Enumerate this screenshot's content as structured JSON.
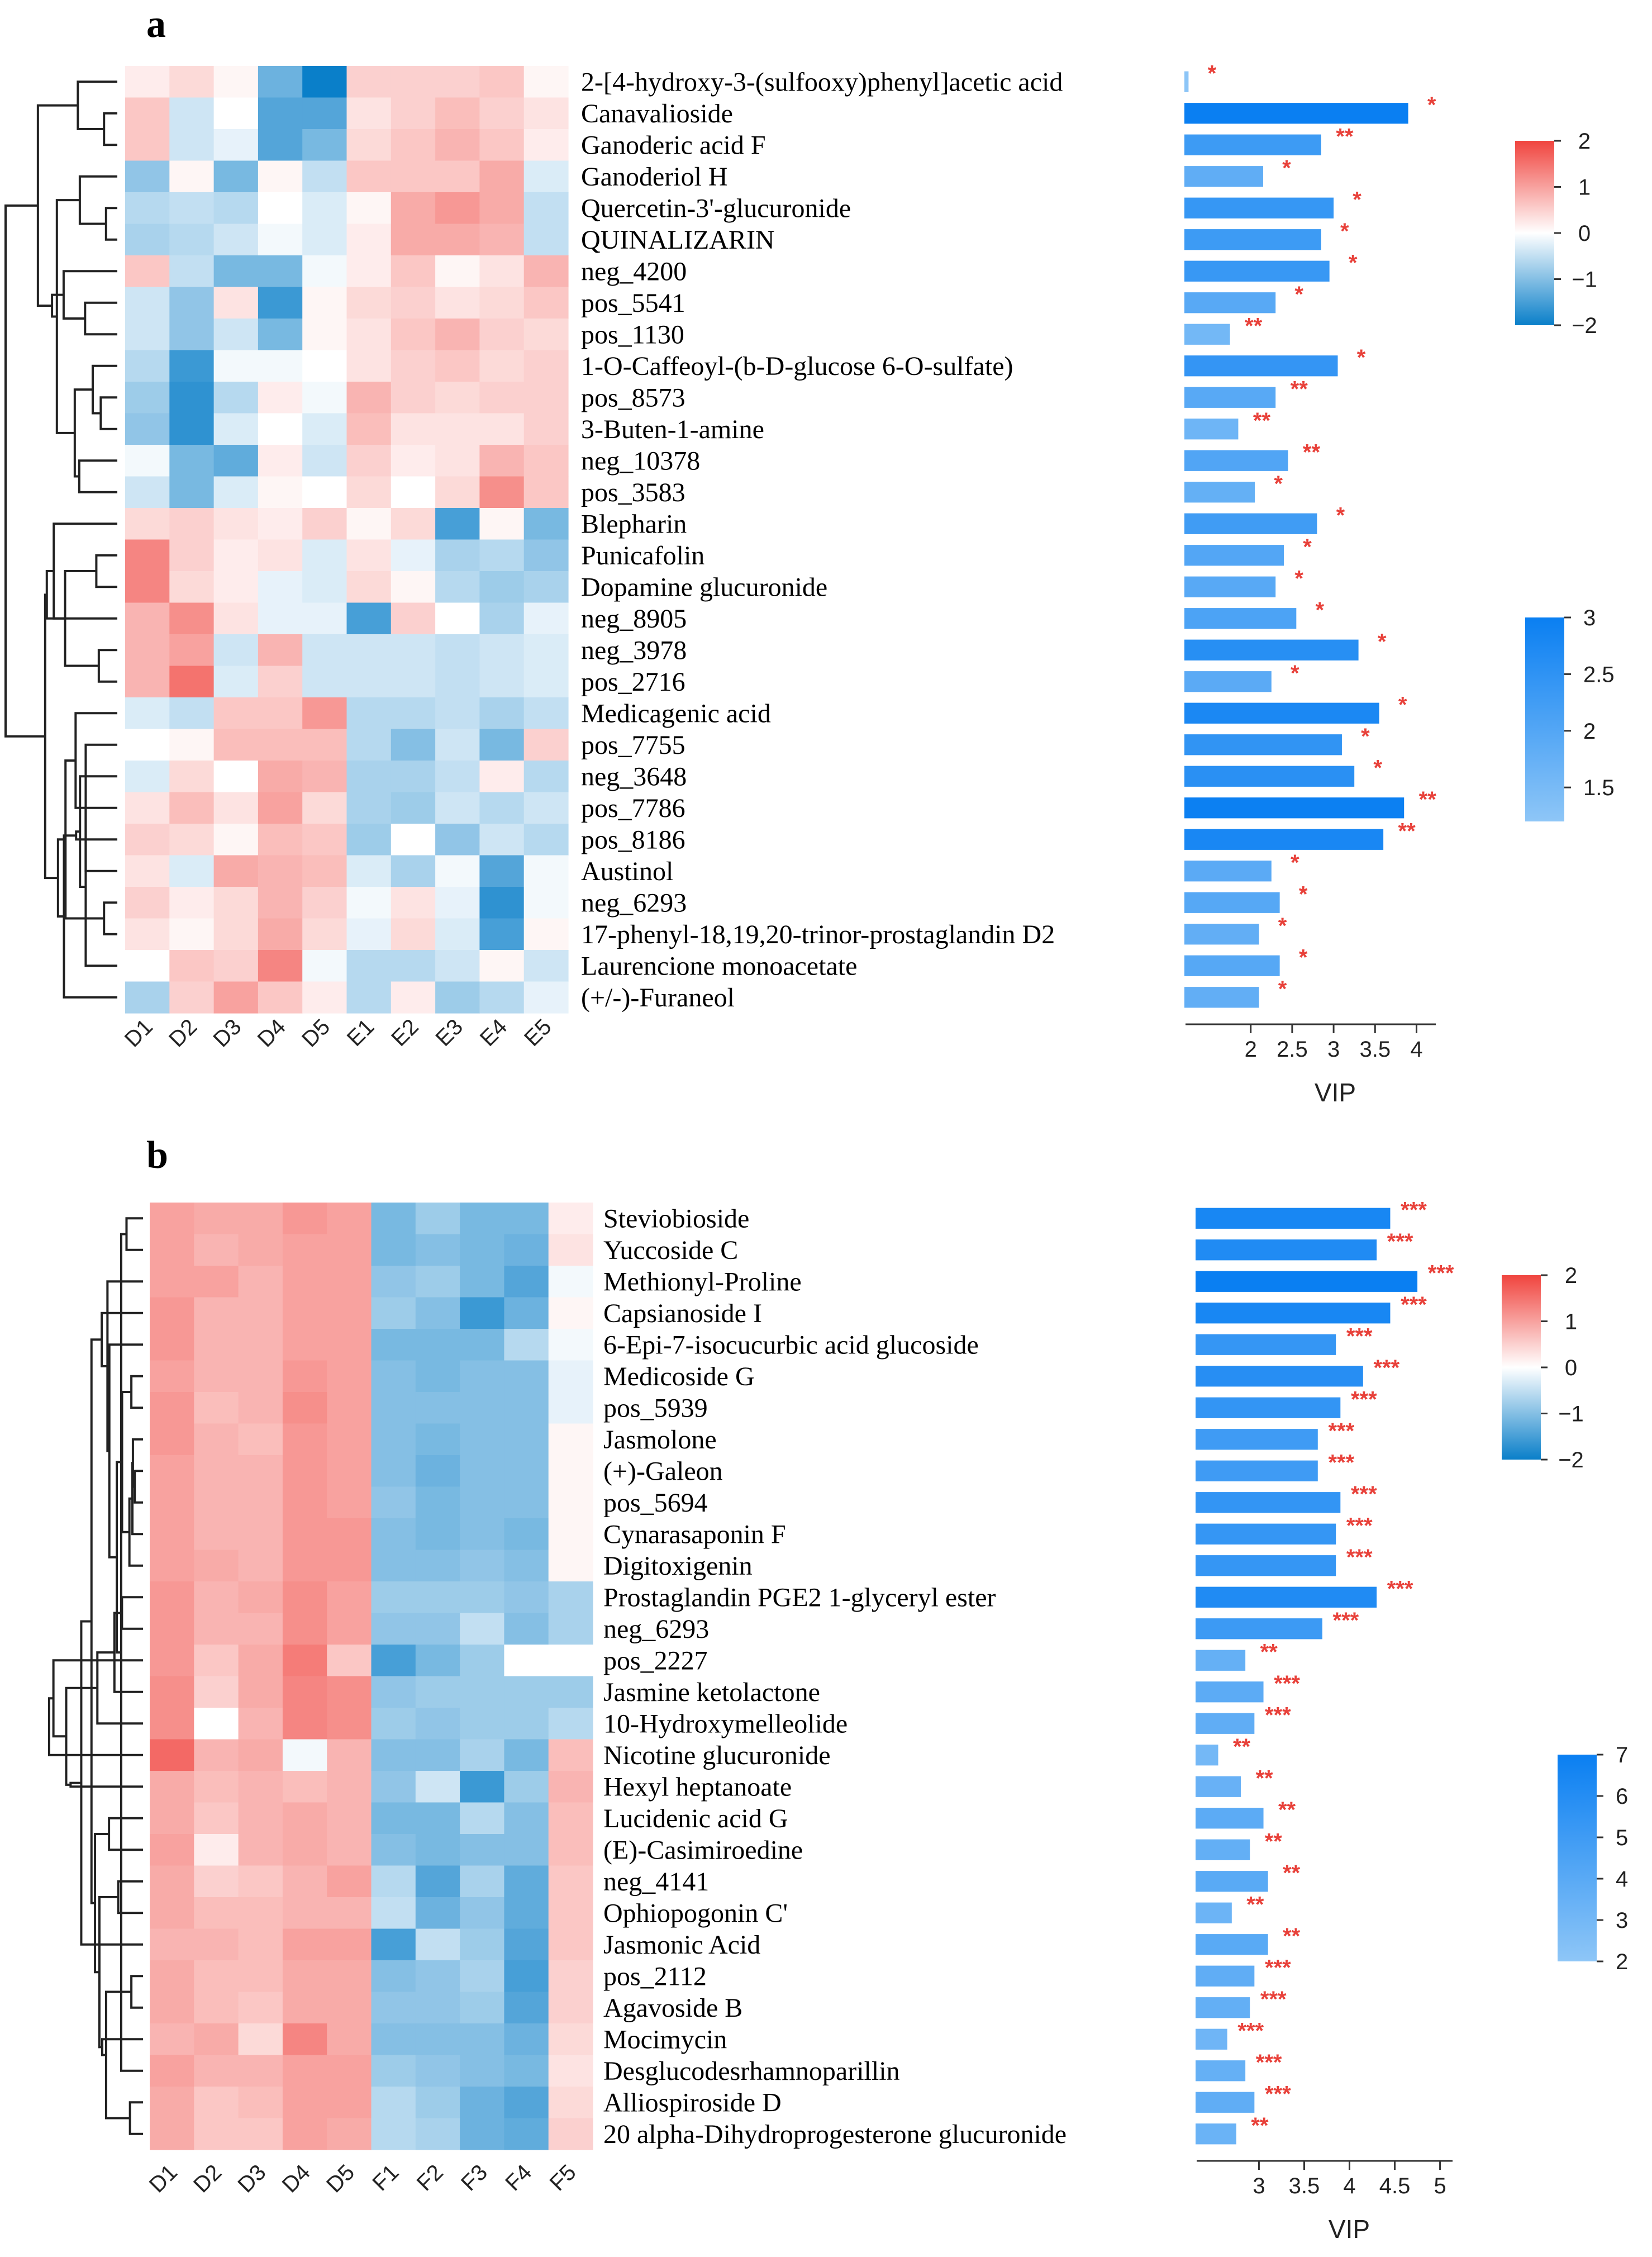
{
  "colors": {
    "heat_low": "#0a7fc9",
    "heat_mid": "#ffffff",
    "heat_high": "#f0443e",
    "vip_low": "#8ec6f7",
    "vip_high": "#0a7ff2",
    "sig": "#e8413a",
    "dendro": "#222222"
  },
  "chart_data": [
    {
      "type": "heatmap",
      "panel_label": "a",
      "columns": [
        "D1",
        "D2",
        "D3",
        "D4",
        "D5",
        "E1",
        "E2",
        "E3",
        "E4",
        "E5"
      ],
      "rows": [
        "2-[4-hydroxy-3-(sulfooxy)phenyl]acetic acid",
        "Canavalioside",
        "Ganoderic acid F",
        "Ganoderiol H",
        "Quercetin-3'-glucuronide",
        "QUINALIZARIN",
        "neg_4200",
        "pos_5541",
        "pos_1130",
        "1-O-Caffeoyl-(b-D-glucose 6-O-sulfate)",
        "pos_8573",
        "3-Buten-1-amine",
        "neg_10378",
        "pos_3583",
        "Blepharin",
        "Punicafolin",
        "Dopamine glucuronide",
        "neg_8905",
        "neg_3978",
        "pos_2716",
        "Medicagenic acid",
        "pos_7755",
        "neg_3648",
        "pos_7786",
        "pos_8186",
        "Austinol",
        "neg_6293",
        "17-phenyl-18,19,20-trinor-prostaglandin D2",
        "Laurencione monoacetate",
        "(+/-)-Furaneol"
      ],
      "values": [
        [
          0.2,
          0.4,
          0.1,
          -1.2,
          -2.0,
          0.5,
          0.5,
          0.5,
          0.6,
          0.1
        ],
        [
          0.6,
          -0.4,
          0.0,
          -1.4,
          -1.4,
          0.3,
          0.5,
          0.7,
          0.5,
          0.3
        ],
        [
          0.6,
          -0.4,
          -0.2,
          -1.4,
          -1.1,
          0.4,
          0.6,
          0.8,
          0.6,
          0.2
        ],
        [
          -0.9,
          0.1,
          -1.1,
          0.1,
          -0.5,
          0.6,
          0.6,
          0.6,
          0.9,
          -0.3
        ],
        [
          -0.6,
          -0.5,
          -0.6,
          0.0,
          -0.3,
          0.1,
          0.9,
          1.1,
          0.9,
          -0.5
        ],
        [
          -0.7,
          -0.6,
          -0.4,
          -0.1,
          -0.3,
          0.2,
          0.9,
          0.9,
          0.8,
          -0.5
        ],
        [
          0.6,
          -0.5,
          -1.1,
          -1.1,
          -0.1,
          0.2,
          0.6,
          0.1,
          0.3,
          0.8
        ],
        [
          -0.4,
          -0.9,
          0.3,
          -1.6,
          0.1,
          0.4,
          0.5,
          0.3,
          0.4,
          0.6
        ],
        [
          -0.4,
          -0.9,
          -0.4,
          -1.1,
          0.1,
          0.3,
          0.6,
          0.8,
          0.5,
          0.4
        ],
        [
          -0.6,
          -1.6,
          -0.1,
          -0.1,
          0.0,
          0.3,
          0.5,
          0.6,
          0.4,
          0.5
        ],
        [
          -0.8,
          -1.7,
          -0.6,
          0.2,
          -0.1,
          0.8,
          0.5,
          0.4,
          0.5,
          0.5
        ],
        [
          -0.9,
          -1.7,
          -0.3,
          0.0,
          -0.3,
          0.7,
          0.3,
          0.3,
          0.3,
          0.5
        ],
        [
          -0.1,
          -1.1,
          -1.3,
          0.2,
          -0.4,
          0.5,
          0.2,
          0.3,
          0.8,
          0.6
        ],
        [
          -0.4,
          -1.1,
          -0.3,
          0.1,
          0.0,
          0.4,
          0.0,
          0.4,
          1.2,
          0.6
        ],
        [
          0.4,
          0.5,
          0.3,
          0.2,
          0.5,
          0.1,
          0.4,
          -1.5,
          0.1,
          -1.1
        ],
        [
          1.3,
          0.5,
          0.2,
          0.3,
          -0.3,
          0.3,
          -0.2,
          -0.7,
          -0.6,
          -0.9
        ],
        [
          1.3,
          0.4,
          0.2,
          -0.2,
          -0.3,
          0.4,
          0.1,
          -0.6,
          -0.8,
          -0.7
        ],
        [
          0.8,
          1.2,
          0.3,
          -0.2,
          -0.2,
          -1.5,
          0.5,
          0.0,
          -0.7,
          -0.2
        ],
        [
          0.8,
          1.0,
          -0.4,
          0.8,
          -0.4,
          -0.4,
          -0.4,
          -0.5,
          -0.4,
          -0.3
        ],
        [
          0.8,
          1.5,
          -0.3,
          0.5,
          -0.4,
          -0.4,
          -0.4,
          -0.5,
          -0.4,
          -0.3
        ],
        [
          -0.3,
          -0.5,
          0.6,
          0.6,
          1.1,
          -0.6,
          -0.6,
          -0.5,
          -0.7,
          -0.5
        ],
        [
          0.0,
          0.1,
          0.7,
          0.7,
          0.7,
          -0.6,
          -1.0,
          -0.4,
          -1.1,
          0.5
        ],
        [
          -0.3,
          0.4,
          0.0,
          0.9,
          0.8,
          -0.7,
          -0.7,
          -0.5,
          0.2,
          -0.6
        ],
        [
          0.3,
          0.7,
          0.3,
          1.0,
          0.4,
          -0.7,
          -0.8,
          -0.4,
          -0.6,
          -0.4
        ],
        [
          0.5,
          0.4,
          0.1,
          0.7,
          0.6,
          -0.8,
          0.0,
          -0.9,
          -0.4,
          -0.6
        ],
        [
          0.3,
          -0.3,
          0.9,
          0.8,
          0.7,
          -0.3,
          -0.7,
          -0.1,
          -1.4,
          -0.1
        ],
        [
          0.5,
          0.2,
          0.4,
          0.8,
          0.5,
          -0.1,
          0.3,
          -0.2,
          -1.7,
          -0.1
        ],
        [
          0.3,
          0.1,
          0.4,
          0.9,
          0.4,
          -0.2,
          0.4,
          -0.3,
          -1.5,
          0.1
        ],
        [
          0.0,
          0.6,
          0.5,
          1.3,
          -0.1,
          -0.6,
          -0.6,
          -0.4,
          0.1,
          -0.4
        ],
        [
          -0.7,
          0.5,
          1.0,
          0.6,
          0.2,
          -0.6,
          0.2,
          -0.8,
          -0.6,
          -0.2
        ]
      ],
      "heat_legend": {
        "ticks": [
          "2",
          "1",
          "0",
          "−1",
          "−2"
        ],
        "range": [
          -2,
          2
        ]
      },
      "vip": [
        1.25,
        3.9,
        2.85,
        2.15,
        3.0,
        2.85,
        2.95,
        2.3,
        1.75,
        3.05,
        2.3,
        1.85,
        2.45,
        2.05,
        2.8,
        2.4,
        2.3,
        2.55,
        3.3,
        2.25,
        3.55,
        3.1,
        3.25,
        3.85,
        3.6,
        2.25,
        2.35,
        2.1,
        2.35,
        2.1
      ],
      "sig": [
        "*",
        "*",
        "**",
        "*",
        "*",
        "*",
        "*",
        "*",
        "**",
        "*",
        "**",
        "**",
        "**",
        "*",
        "*",
        "*",
        "*",
        "*",
        "*",
        "*",
        "*",
        "*",
        "*",
        "**",
        "**",
        "*",
        "*",
        "*",
        "*",
        "*"
      ],
      "vip_axis": {
        "title": "VIP",
        "min": 1.2,
        "max": 4.3,
        "ticks": [
          "2",
          "2.5",
          "3",
          "3.5",
          "4"
        ],
        "tick_values": [
          2,
          2.5,
          3,
          3.5,
          4
        ]
      },
      "vip_legend": {
        "ticks": [
          "3",
          "2.5",
          "2",
          "1.5"
        ],
        "range": [
          1.2,
          3
        ]
      }
    },
    {
      "type": "heatmap",
      "panel_label": "b",
      "columns": [
        "D1",
        "D2",
        "D3",
        "D4",
        "D5",
        "F1",
        "F2",
        "F3",
        "F4",
        "F5"
      ],
      "rows": [
        "Steviobioside",
        "Yuccoside C",
        "Methionyl-Proline",
        "Capsianoside I",
        "6-Epi-7-isocucurbic acid glucoside",
        "Medicoside G",
        "pos_5939",
        "Jasmolone",
        "(+)-Galeon",
        "pos_5694",
        "Cynarasaponin F",
        "Digitoxigenin",
        "Prostaglandin PGE2 1-glyceryl ester",
        "neg_6293",
        "pos_2227",
        "Jasmine ketolactone",
        "10-Hydroxymelleolide",
        "Nicotine glucuronide",
        "Hexyl heptanoate",
        "Lucidenic acid G",
        "(E)-Casimiroedine",
        "neg_4141",
        "Ophiopogonin C'",
        "Jasmonic Acid",
        "pos_2112",
        "Agavoside B",
        "Mocimycin",
        "Desglucodesrhamnoparillin",
        "Alliospiroside D",
        "20 alpha-Dihydroprogesterone glucuronide"
      ],
      "values": [
        [
          1.0,
          0.9,
          0.9,
          1.1,
          1.0,
          -1.1,
          -0.8,
          -1.1,
          -1.1,
          0.2
        ],
        [
          1.0,
          0.8,
          0.9,
          1.0,
          1.0,
          -1.1,
          -1.0,
          -1.1,
          -1.2,
          0.3
        ],
        [
          1.0,
          1.0,
          0.8,
          1.0,
          1.0,
          -0.9,
          -0.8,
          -1.1,
          -1.4,
          -0.1
        ],
        [
          1.1,
          0.8,
          0.8,
          1.0,
          1.0,
          -0.8,
          -1.0,
          -1.6,
          -1.2,
          0.1
        ],
        [
          1.1,
          0.8,
          0.8,
          1.0,
          1.0,
          -1.1,
          -1.1,
          -1.1,
          -0.6,
          -0.1
        ],
        [
          1.0,
          0.8,
          0.8,
          1.1,
          1.0,
          -1.0,
          -1.1,
          -1.0,
          -1.0,
          -0.2
        ],
        [
          1.1,
          0.7,
          0.8,
          1.2,
          1.0,
          -1.0,
          -1.0,
          -1.0,
          -1.0,
          -0.2
        ],
        [
          1.1,
          0.8,
          0.7,
          1.1,
          1.0,
          -1.0,
          -1.1,
          -1.0,
          -1.0,
          0.1
        ],
        [
          1.0,
          0.8,
          0.8,
          1.1,
          1.0,
          -1.0,
          -1.2,
          -1.0,
          -1.0,
          0.1
        ],
        [
          1.0,
          0.8,
          0.8,
          1.1,
          1.0,
          -0.9,
          -1.1,
          -1.0,
          -1.0,
          0.1
        ],
        [
          1.0,
          0.8,
          0.8,
          1.1,
          1.1,
          -1.0,
          -1.1,
          -1.0,
          -1.1,
          0.1
        ],
        [
          1.0,
          0.9,
          0.8,
          1.1,
          1.1,
          -1.0,
          -1.0,
          -0.9,
          -1.0,
          0.1
        ],
        [
          1.1,
          0.8,
          0.9,
          1.2,
          1.0,
          -0.8,
          -0.8,
          -0.8,
          -0.9,
          -0.7
        ],
        [
          1.1,
          0.8,
          0.8,
          1.2,
          1.0,
          -0.9,
          -0.9,
          -0.5,
          -1.0,
          -0.7
        ],
        [
          1.1,
          0.6,
          0.9,
          1.4,
          0.6,
          -1.5,
          -1.1,
          -0.8,
          0.0,
          0.0
        ],
        [
          1.2,
          0.5,
          0.9,
          1.3,
          1.2,
          -0.9,
          -0.8,
          -0.8,
          -0.8,
          -0.8
        ],
        [
          1.2,
          0.0,
          0.8,
          1.3,
          1.2,
          -0.8,
          -0.9,
          -0.8,
          -0.8,
          -0.6
        ],
        [
          1.6,
          0.8,
          0.9,
          -0.1,
          0.8,
          -1.0,
          -1.0,
          -0.7,
          -1.1,
          0.7
        ],
        [
          0.9,
          0.7,
          0.8,
          0.7,
          0.8,
          -0.9,
          -0.4,
          -1.6,
          -0.8,
          0.8
        ],
        [
          0.9,
          0.6,
          0.8,
          0.9,
          0.8,
          -1.1,
          -1.1,
          -0.6,
          -1.0,
          0.7
        ],
        [
          1.0,
          0.2,
          0.8,
          0.9,
          0.8,
          -1.0,
          -1.1,
          -1.0,
          -1.0,
          0.7
        ],
        [
          0.9,
          0.5,
          0.6,
          0.8,
          1.0,
          -0.6,
          -1.4,
          -0.7,
          -1.3,
          0.6
        ],
        [
          0.9,
          0.7,
          0.7,
          0.8,
          0.8,
          -0.5,
          -1.2,
          -0.9,
          -1.3,
          0.6
        ],
        [
          0.8,
          0.8,
          0.7,
          1.0,
          1.0,
          -1.5,
          -0.5,
          -0.8,
          -1.4,
          0.6
        ],
        [
          0.9,
          0.7,
          0.7,
          0.9,
          0.9,
          -1.0,
          -0.9,
          -0.7,
          -1.5,
          0.5
        ],
        [
          0.9,
          0.7,
          0.6,
          0.9,
          0.9,
          -0.9,
          -0.9,
          -0.8,
          -1.4,
          0.5
        ],
        [
          0.8,
          0.9,
          0.4,
          1.3,
          0.9,
          -1.0,
          -1.0,
          -1.0,
          -1.2,
          0.4
        ],
        [
          1.0,
          0.8,
          0.8,
          1.0,
          1.0,
          -0.8,
          -0.9,
          -1.0,
          -1.1,
          0.3
        ],
        [
          0.9,
          0.6,
          0.7,
          1.0,
          1.0,
          -0.6,
          -0.8,
          -1.2,
          -1.4,
          0.4
        ],
        [
          0.9,
          0.6,
          0.6,
          1.0,
          0.9,
          -0.6,
          -0.7,
          -1.2,
          -1.3,
          0.5
        ]
      ],
      "heat_legend": {
        "ticks": [
          "2",
          "1",
          "0",
          "−1",
          "−2"
        ],
        "range": [
          -2,
          2
        ]
      },
      "vip": [
        4.45,
        4.3,
        4.75,
        4.45,
        3.85,
        4.15,
        3.9,
        3.65,
        3.65,
        3.9,
        3.85,
        3.85,
        4.3,
        3.7,
        2.85,
        3.05,
        2.95,
        2.55,
        2.8,
        3.05,
        2.9,
        3.1,
        2.7,
        3.1,
        2.95,
        2.9,
        2.65,
        2.85,
        2.95,
        2.75
      ],
      "sig": [
        "***",
        "***",
        "***",
        "***",
        "***",
        "***",
        "***",
        "***",
        "***",
        "***",
        "***",
        "***",
        "***",
        "***",
        "**",
        "***",
        "***",
        "**",
        "**",
        "**",
        "**",
        "**",
        "**",
        "**",
        "***",
        "***",
        "***",
        "***",
        "***",
        "**"
      ],
      "vip_axis": {
        "title": "VIP",
        "min": 2.3,
        "max": 5.2,
        "ticks": [
          "3",
          "3.5",
          "4",
          "4.5",
          "5"
        ],
        "tick_values": [
          3,
          3.5,
          4,
          4.5,
          5
        ]
      },
      "vip_legend": {
        "ticks": [
          "7",
          "6",
          "5",
          "4",
          "3",
          "2"
        ],
        "range": [
          2,
          7
        ]
      }
    }
  ]
}
